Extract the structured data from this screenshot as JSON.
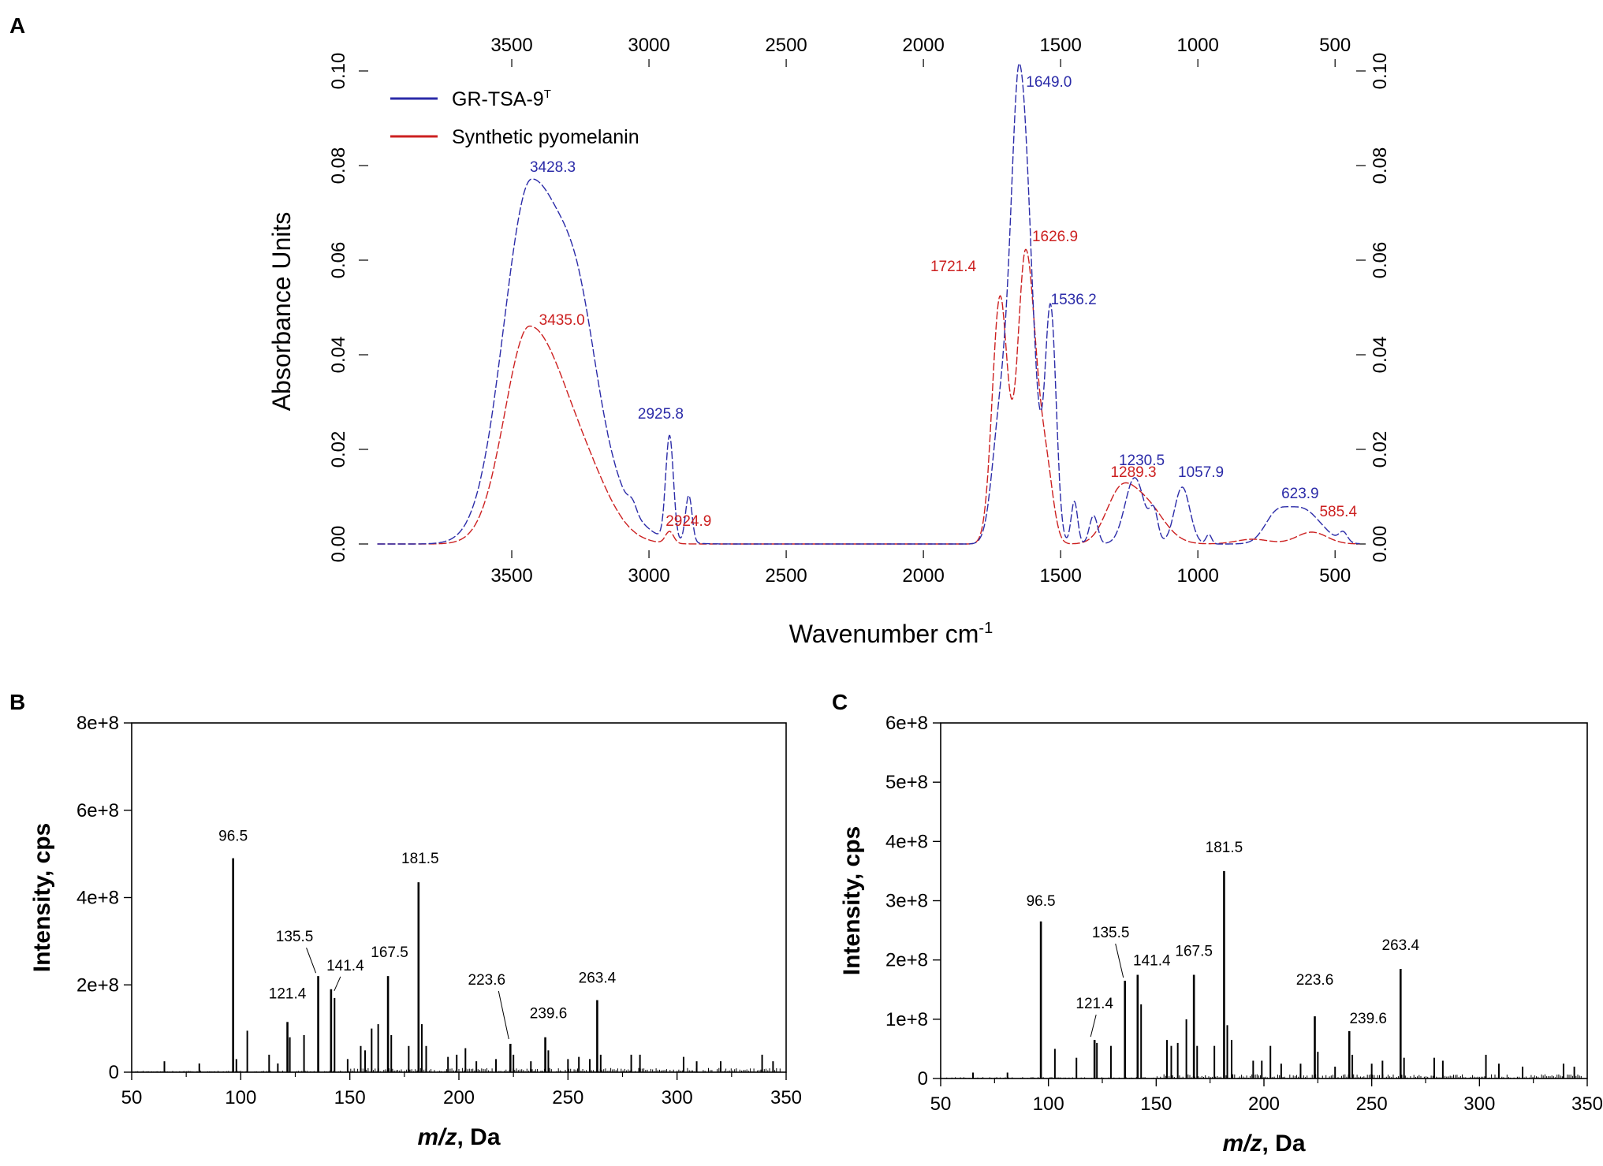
{
  "chart_data": [
    {
      "panel": "A",
      "type": "line",
      "xlabel": "Wavenumber cm",
      "xlabel_sup": "-1",
      "ylabel": "Absorbance Units",
      "xlim": [
        4000,
        400
      ],
      "ylim": [
        0,
        0.1
      ],
      "x_ticks": [
        3500,
        3000,
        2500,
        2000,
        1500,
        1000,
        500
      ],
      "x_tick_labels": [
        "3500",
        "3000",
        "2500",
        "2000",
        "1500",
        "1000",
        "500"
      ],
      "y_ticks": [
        0,
        0.02,
        0.04,
        0.06,
        0.08,
        0.1
      ],
      "y_tick_labels": [
        "0.00",
        "0.02",
        "0.04",
        "0.06",
        "0.08",
        "0.10"
      ],
      "series": [
        {
          "name": "GR-TSA-9",
          "name_sup": "T",
          "color": "#2b2ba8",
          "peaks": [
            {
              "x": 3428.3,
              "y": 0.077,
              "label": "3428.3"
            },
            {
              "x": 2925.8,
              "y": 0.0245,
              "label": "2925.8"
            },
            {
              "x": 1649.0,
              "y": 0.1,
              "label": "1649.0"
            },
            {
              "x": 1536.2,
              "y": 0.049,
              "label": "1536.2"
            },
            {
              "x": 1230.5,
              "y": 0.015,
              "label": "1230.5"
            },
            {
              "x": 1057.9,
              "y": 0.0125,
              "label": "1057.9"
            },
            {
              "x": 623.9,
              "y": 0.008,
              "label": "623.9"
            }
          ]
        },
        {
          "name": "Synthetic pyomelanin",
          "color": "#cc2020",
          "peaks": [
            {
              "x": 3435.0,
              "y": 0.046,
              "label": "3435.0"
            },
            {
              "x": 2924.9,
              "y": 0.0025,
              "label": "2924.9"
            },
            {
              "x": 1721.4,
              "y": 0.054,
              "label": "1721.4"
            },
            {
              "x": 1626.9,
              "y": 0.062,
              "label": "1626.9"
            },
            {
              "x": 1289.3,
              "y": 0.01,
              "label": "1289.3"
            },
            {
              "x": 585.4,
              "y": 0.0025,
              "label": "585.4"
            }
          ]
        }
      ]
    },
    {
      "panel": "B",
      "type": "bar",
      "xlabel_italic": "m/z",
      "xlabel_rest": ", Da",
      "ylabel": "Intensity, cps",
      "xlim": [
        50,
        350
      ],
      "ylim": [
        0,
        800000000
      ],
      "x_tick_labels": [
        "50",
        "100",
        "150",
        "200",
        "250",
        "300",
        "350"
      ],
      "y_tick_labels": [
        "0",
        "2e+8",
        "4e+8",
        "6e+8",
        "8e+8"
      ],
      "peaks": [
        {
          "x": 96.5,
          "y": 490000000,
          "label": "96.5"
        },
        {
          "x": 121.4,
          "y": 115000000,
          "label": "121.4"
        },
        {
          "x": 135.5,
          "y": 220000000,
          "label": "135.5"
        },
        {
          "x": 141.4,
          "y": 190000000,
          "label": "141.4"
        },
        {
          "x": 167.5,
          "y": 220000000,
          "label": "167.5"
        },
        {
          "x": 181.5,
          "y": 435000000,
          "label": "181.5"
        },
        {
          "x": 223.6,
          "y": 65000000,
          "label": "223.6"
        },
        {
          "x": 239.6,
          "y": 80000000,
          "label": "239.6"
        },
        {
          "x": 263.4,
          "y": 165000000,
          "label": "263.4"
        }
      ],
      "minor_peaks": [
        {
          "x": 65,
          "y": 25000000
        },
        {
          "x": 81,
          "y": 20000000
        },
        {
          "x": 98,
          "y": 30000000
        },
        {
          "x": 103,
          "y": 95000000
        },
        {
          "x": 113,
          "y": 40000000
        },
        {
          "x": 117,
          "y": 20000000
        },
        {
          "x": 122.5,
          "y": 80000000
        },
        {
          "x": 129,
          "y": 85000000
        },
        {
          "x": 143,
          "y": 170000000
        },
        {
          "x": 149,
          "y": 30000000
        },
        {
          "x": 155,
          "y": 60000000
        },
        {
          "x": 157,
          "y": 50000000
        },
        {
          "x": 160,
          "y": 100000000
        },
        {
          "x": 163,
          "y": 110000000
        },
        {
          "x": 169,
          "y": 85000000
        },
        {
          "x": 177,
          "y": 60000000
        },
        {
          "x": 183,
          "y": 110000000
        },
        {
          "x": 185,
          "y": 60000000
        },
        {
          "x": 195,
          "y": 35000000
        },
        {
          "x": 199,
          "y": 40000000
        },
        {
          "x": 203,
          "y": 55000000
        },
        {
          "x": 208,
          "y": 25000000
        },
        {
          "x": 217,
          "y": 30000000
        },
        {
          "x": 225,
          "y": 40000000
        },
        {
          "x": 233,
          "y": 25000000
        },
        {
          "x": 241,
          "y": 50000000
        },
        {
          "x": 250,
          "y": 30000000
        },
        {
          "x": 255,
          "y": 35000000
        },
        {
          "x": 260,
          "y": 30000000
        },
        {
          "x": 265,
          "y": 40000000
        },
        {
          "x": 279,
          "y": 40000000
        },
        {
          "x": 283,
          "y": 40000000
        },
        {
          "x": 303,
          "y": 35000000
        },
        {
          "x": 309,
          "y": 25000000
        },
        {
          "x": 320,
          "y": 25000000
        },
        {
          "x": 339,
          "y": 40000000
        },
        {
          "x": 344,
          "y": 25000000
        }
      ],
      "callouts": [
        {
          "from": "135.5",
          "to_x": 135.5
        },
        {
          "from": "141.4",
          "to_x": 141.4
        },
        {
          "from": "223.6",
          "to_x": 223.6
        }
      ]
    },
    {
      "panel": "C",
      "type": "bar",
      "xlabel_italic": "m/z",
      "xlabel_rest": ", Da",
      "ylabel": "Intensity, cps",
      "xlim": [
        50,
        350
      ],
      "ylim": [
        0,
        600000000
      ],
      "x_tick_labels": [
        "50",
        "100",
        "150",
        "200",
        "250",
        "300",
        "350"
      ],
      "y_tick_labels": [
        "0",
        "1e+8",
        "2e+8",
        "3e+8",
        "4e+8",
        "5e+8",
        "6e+8"
      ],
      "peaks": [
        {
          "x": 96.5,
          "y": 265000000,
          "label": "96.5"
        },
        {
          "x": 121.4,
          "y": 65000000,
          "label": "121.4"
        },
        {
          "x": 135.5,
          "y": 165000000,
          "label": "135.5"
        },
        {
          "x": 141.4,
          "y": 175000000,
          "label": "141.4"
        },
        {
          "x": 167.5,
          "y": 175000000,
          "label": "167.5"
        },
        {
          "x": 181.5,
          "y": 350000000,
          "label": "181.5"
        },
        {
          "x": 223.6,
          "y": 105000000,
          "label": "223.6"
        },
        {
          "x": 239.6,
          "y": 80000000,
          "label": "239.6"
        },
        {
          "x": 263.4,
          "y": 185000000,
          "label": "263.4"
        }
      ],
      "minor_peaks": [
        {
          "x": 65,
          "y": 10000000
        },
        {
          "x": 81,
          "y": 10000000
        },
        {
          "x": 103,
          "y": 50000000
        },
        {
          "x": 113,
          "y": 35000000
        },
        {
          "x": 122.5,
          "y": 60000000
        },
        {
          "x": 129,
          "y": 55000000
        },
        {
          "x": 143,
          "y": 125000000
        },
        {
          "x": 155,
          "y": 65000000
        },
        {
          "x": 157,
          "y": 55000000
        },
        {
          "x": 160,
          "y": 60000000
        },
        {
          "x": 164,
          "y": 100000000
        },
        {
          "x": 169,
          "y": 55000000
        },
        {
          "x": 177,
          "y": 55000000
        },
        {
          "x": 183,
          "y": 90000000
        },
        {
          "x": 185,
          "y": 65000000
        },
        {
          "x": 195,
          "y": 30000000
        },
        {
          "x": 199,
          "y": 30000000
        },
        {
          "x": 203,
          "y": 55000000
        },
        {
          "x": 208,
          "y": 25000000
        },
        {
          "x": 217,
          "y": 25000000
        },
        {
          "x": 225,
          "y": 45000000
        },
        {
          "x": 233,
          "y": 20000000
        },
        {
          "x": 241,
          "y": 40000000
        },
        {
          "x": 250,
          "y": 25000000
        },
        {
          "x": 255,
          "y": 30000000
        },
        {
          "x": 265,
          "y": 35000000
        },
        {
          "x": 279,
          "y": 35000000
        },
        {
          "x": 283,
          "y": 30000000
        },
        {
          "x": 303,
          "y": 40000000
        },
        {
          "x": 309,
          "y": 25000000
        },
        {
          "x": 320,
          "y": 20000000
        },
        {
          "x": 339,
          "y": 25000000
        },
        {
          "x": 344,
          "y": 20000000
        }
      ],
      "callouts": [
        {
          "from": "121.4",
          "to_x": 121.4
        },
        {
          "from": "135.5",
          "to_x": 135.5
        }
      ]
    }
  ]
}
